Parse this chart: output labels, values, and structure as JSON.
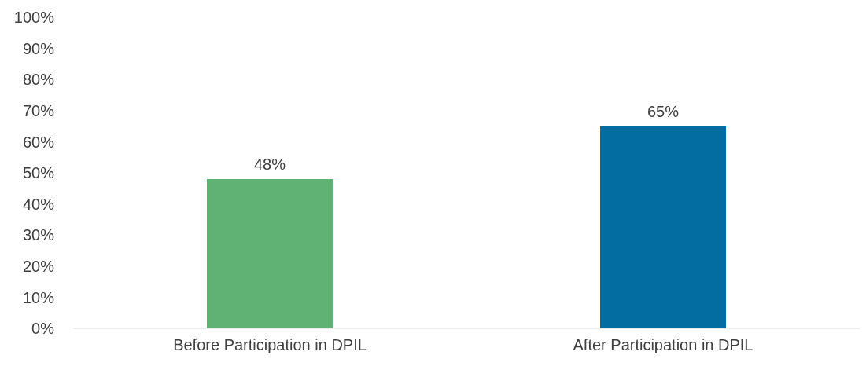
{
  "chart_data": {
    "type": "bar",
    "categories": [
      "Before Participation in DPIL",
      "After Participation in DPIL"
    ],
    "values": [
      48,
      65
    ],
    "colors": [
      "#5fb174",
      "#036ca0"
    ],
    "value_labels": [
      "48%",
      "65%"
    ],
    "ylim": [
      0,
      100
    ],
    "yticks": [
      {
        "value": 0,
        "label": "0%"
      },
      {
        "value": 10,
        "label": "10%"
      },
      {
        "value": 20,
        "label": "20%"
      },
      {
        "value": 30,
        "label": "30%"
      },
      {
        "value": 40,
        "label": "40%"
      },
      {
        "value": 50,
        "label": "50%"
      },
      {
        "value": 60,
        "label": "60%"
      },
      {
        "value": 70,
        "label": "70%"
      },
      {
        "value": 80,
        "label": "80%"
      },
      {
        "value": 90,
        "label": "90%"
      },
      {
        "value": 100,
        "label": "100%"
      }
    ],
    "grid": false,
    "legend": false
  }
}
